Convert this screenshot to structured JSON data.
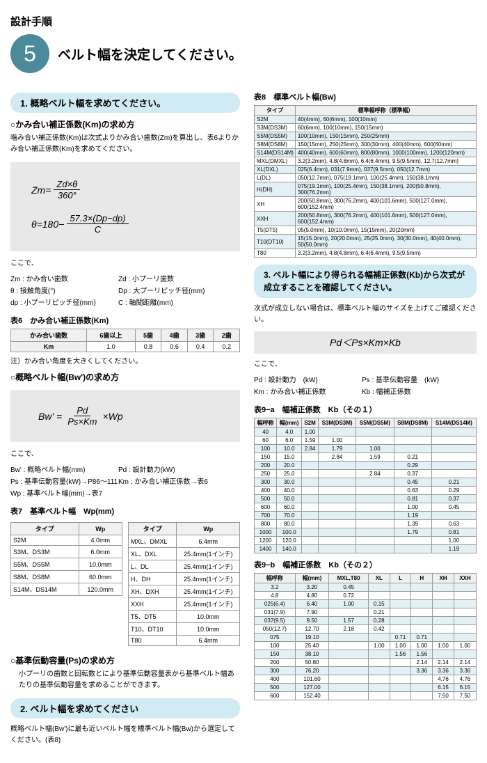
{
  "pageHeading": "設計手順",
  "stepNumber": "5",
  "stepTitle": "ベルト幅を決定してください。",
  "section1": {
    "heading": "1. 概略ベルト幅を求めてください。",
    "sub1": "○かみ合い補正係数(Km)の求め方",
    "desc1": "噛み合い補正係数(Km)は次式よりかみ合い歯数(Zm)を算出し、表6よりかみ合い補正係数(Km)を求めてください。",
    "formula1_lhs": "Zm=",
    "formula1_num": "Zd×θ",
    "formula1_den": "360°",
    "formula2_lhs": "θ=180−",
    "formula2_num": "57.3×(Dp−dp)",
    "formula2_den": "C",
    "defsLabel": "ここで、",
    "defs": [
      {
        "l": "Zm : かみ合い歯数",
        "r": "Zd : 小プーリ歯数"
      },
      {
        "l": "θ : 接触角度(°)",
        "r": "Dp : 大プーリピッチ径(mm)"
      },
      {
        "l": "dp : 小プーリピッチ径(mm)",
        "r": "C : 軸間距離(mm)"
      }
    ],
    "table6Title": "表6　かみ合い補正係数(Km)",
    "table6": {
      "headers": [
        "かみ合い歯数",
        "6歯以上",
        "5歯",
        "4歯",
        "3歯",
        "2歯"
      ],
      "row": [
        "Km",
        "1.0",
        "0.8",
        "0.6",
        "0.4",
        "0.2"
      ]
    },
    "note1": "注）かみ合い角度を大きくしてください。",
    "sub2": "○概略ベルト幅(Bw')の求め方",
    "formula3_lhs": "Bw' =",
    "formula3_num": "Pd",
    "formula3_den": "Ps×Km",
    "formula3_suffix": "×Wp",
    "defs2Label": "ここで、",
    "defs2": [
      {
        "l": "Bw' : 概略ベルト幅(mm)",
        "r": "Pd : 設計動力(kW)"
      },
      {
        "l": "Ps : 基準伝動容量(kW)→P86～111",
        "r": "Km : かみ合い補正係数→表6"
      },
      {
        "l": "Wp : 基準ベルト幅(mm)→表7",
        "r": ""
      }
    ],
    "table7Title": "表7　基準ベルト幅　Wp(mm)",
    "table7a": {
      "headers": [
        "タイプ",
        "Wp"
      ],
      "rows": [
        [
          "S2M",
          "4.0mm"
        ],
        [
          "S3M、DS3M",
          "6.0mm"
        ],
        [
          "S5M、DS5M",
          "10.0mm"
        ],
        [
          "S8M、DS8M",
          "60.0mm"
        ],
        [
          "S14M、DS14M",
          "120.0mm"
        ]
      ]
    },
    "table7b": {
      "headers": [
        "タイプ",
        "Wp"
      ],
      "rows": [
        [
          "MXL、DMXL",
          "6.4mm"
        ],
        [
          "XL、DXL",
          "25.4mm(1インチ)"
        ],
        [
          "L、DL",
          "25.4mm(1インチ)"
        ],
        [
          "H、DH",
          "25.4mm(1インチ)"
        ],
        [
          "XH、DXH",
          "25.4mm(1インチ)"
        ],
        [
          "XXH",
          "25.4mm(1インチ)"
        ],
        [
          "T5、DT5",
          "10.0mm"
        ],
        [
          "T10、DT10",
          "10.0mm"
        ],
        [
          "T80",
          "6.4mm"
        ]
      ]
    },
    "sub3": "○基準伝動容量(Ps)の求め方",
    "desc3": "小プーリの歯数と回転数とにより基準伝動容量表から基準ベルト幅あたりの基準伝動容量を求めることができます。"
  },
  "section2": {
    "heading": "2. ベルト幅を求めてください",
    "desc": "概略ベルト幅(Bw')に最も近いベルト幅を標準ベルト幅(Bw)から選定してください。(表8)"
  },
  "table8": {
    "title": "表8　標準ベルト幅(Bw)",
    "headers": [
      "タイプ",
      "標準幅呼称（標準幅）"
    ],
    "rows": [
      [
        "S2M",
        "40(4mm), 60(6mm), 100(10mm)"
      ],
      [
        "S3M(DS3M)",
        "60(6mm), 100(10mm), 150(15mm)"
      ],
      [
        "S5M(DS5M)",
        "100(10mm), 150(15mm), 250(25mm)"
      ],
      [
        "S8M(DS8M)",
        "150(15mm), 250(25mm), 300(30mm), 400(40mm), 600(60mm)"
      ],
      [
        "S14M(DS14M)",
        "400(40mm), 600(60mm), 800(80mm), 1000(100mm), 1200(120mm)"
      ],
      [
        "MXL(DMXL)",
        "3.2(3.2mm), 4.8(4.8mm), 6.4(6.4mm), 9.5(9.5mm), 12.7(12.7mm)"
      ],
      [
        "XL(DXL)",
        "025(6.4mm), 031(7.9mm), 037(9.5mm), 050(12.7mm)"
      ],
      [
        "L(DL)",
        "050(12.7mm), 075(19.1mm), 100(25.4mm), 150(38.1mm)"
      ],
      [
        "H(DH)",
        "075(19.1mm), 100(25.4mm), 150(38.1mm), 200(50.8mm), 300(76.2mm)"
      ],
      [
        "XH",
        "200(50.8mm), 300(76.2mm), 400(101.6mm), 500(127.0mm), 600(152.4mm)"
      ],
      [
        "XXH",
        "200(50.8mm), 300(76.2mm), 400(101.6mm), 500(127.0mm), 600(152.4mm)"
      ],
      [
        "T5(DT5)",
        "05(5.0mm), 10(10.0mm), 15(15mm), 20(20mm)"
      ],
      [
        "T10(DT10)",
        "15(15.0mm), 20(20.0mm), 25(25.0mm), 30(30.0mm), 40(40.0mm), 50(50.0mm)"
      ],
      [
        "T80",
        "3.2(3.2mm), 4.8(4.8mm), 6.4(6.4mm), 9.5(9.5mm)"
      ]
    ]
  },
  "section3": {
    "heading": "3. ベルト幅により得られる幅補正係数(Kb)から次式が成立することを確認してください。",
    "desc1": "次式が成立しない場合は、標準ベルト幅のサイズを上げてご確認ください。",
    "inequality": "Pd＜Ps×Km×Kb",
    "defsLabel": "ここで、",
    "defs": [
      {
        "l": "Pd : 設計動力　(kW)",
        "r": "Ps : 基準伝動容量　(kW)"
      },
      {
        "l": "Km : かみ合い補正係数",
        "r": "Kb : 幅補正係数"
      }
    ]
  },
  "table9a": {
    "title": "表9−a　幅補正係数　Kb（その１）",
    "headers": [
      "幅呼称",
      "幅(mm)",
      "S2M",
      "S3M(DS3M)",
      "S5M(DS5M)",
      "S8M(DS8M)",
      "S14M(DS14M)"
    ],
    "rows": [
      {
        "stripe": true,
        "cells": [
          "40",
          "4.0",
          "1.00",
          "",
          "",
          "",
          ""
        ]
      },
      {
        "stripe": false,
        "cells": [
          "60",
          "6.0",
          "1.59",
          "1.00",
          "",
          "",
          ""
        ]
      },
      {
        "stripe": true,
        "cells": [
          "100",
          "10.0",
          "2.84",
          "1.79",
          "1.00",
          "",
          ""
        ]
      },
      {
        "stripe": false,
        "cells": [
          "150",
          "15.0",
          "",
          "2.84",
          "1.59",
          "0.21",
          ""
        ]
      },
      {
        "stripe": true,
        "cells": [
          "200",
          "20.0",
          "",
          "",
          "",
          "0.29",
          ""
        ]
      },
      {
        "stripe": false,
        "cells": [
          "250",
          "25.0",
          "",
          "",
          "2.84",
          "0.37",
          ""
        ]
      },
      {
        "stripe": true,
        "cells": [
          "300",
          "30.0",
          "",
          "",
          "",
          "0.45",
          "0.21"
        ]
      },
      {
        "stripe": false,
        "cells": [
          "400",
          "40.0",
          "",
          "",
          "",
          "0.63",
          "0.29"
        ]
      },
      {
        "stripe": true,
        "cells": [
          "500",
          "50.0",
          "",
          "",
          "",
          "0.81",
          "0.37"
        ]
      },
      {
        "stripe": false,
        "cells": [
          "600",
          "60.0",
          "",
          "",
          "",
          "1.00",
          "0.45"
        ]
      },
      {
        "stripe": true,
        "cells": [
          "700",
          "70.0",
          "",
          "",
          "",
          "1.19",
          ""
        ]
      },
      {
        "stripe": false,
        "cells": [
          "800",
          "80.0",
          "",
          "",
          "",
          "1.39",
          "0.63"
        ]
      },
      {
        "stripe": true,
        "cells": [
          "1000",
          "100.0",
          "",
          "",
          "",
          "1.79",
          "0.81"
        ]
      },
      {
        "stripe": false,
        "cells": [
          "1200",
          "120.0",
          "",
          "",
          "",
          "",
          "1.00"
        ]
      },
      {
        "stripe": true,
        "cells": [
          "1400",
          "140.0",
          "",
          "",
          "",
          "",
          "1.19"
        ]
      }
    ]
  },
  "table9b": {
    "title": "表9−b　幅補正係数　Kb（その２）",
    "headers": [
      "幅呼称",
      "幅(mm)",
      "MXL,T80",
      "XL",
      "L",
      "H",
      "XH",
      "XXH"
    ],
    "rows": [
      {
        "stripe": true,
        "cells": [
          "3.2",
          "3.20",
          "0.45",
          "",
          "",
          "",
          "",
          ""
        ]
      },
      {
        "stripe": false,
        "cells": [
          "4.8",
          "4.80",
          "0.72",
          "",
          "",
          "",
          "",
          ""
        ]
      },
      {
        "stripe": true,
        "cells": [
          "025(6.4)",
          "6.40",
          "1.00",
          "0.15",
          "",
          "",
          "",
          ""
        ]
      },
      {
        "stripe": false,
        "cells": [
          "031(7.9)",
          "7.90",
          "",
          "0.21",
          "",
          "",
          "",
          ""
        ]
      },
      {
        "stripe": true,
        "cells": [
          "037(9.5)",
          "9.50",
          "1.57",
          "0.28",
          "",
          "",
          "",
          ""
        ]
      },
      {
        "stripe": false,
        "cells": [
          "050(12.7)",
          "12.70",
          "2.18",
          "0.42",
          "",
          "",
          "",
          ""
        ]
      },
      {
        "stripe": true,
        "cells": [
          "075",
          "19.10",
          "",
          "",
          "0.71",
          "0.71",
          "",
          ""
        ]
      },
      {
        "stripe": false,
        "cells": [
          "100",
          "25.40",
          "",
          "1.00",
          "1.00",
          "1.00",
          "1.00",
          "1.00"
        ]
      },
      {
        "stripe": true,
        "cells": [
          "150",
          "38.10",
          "",
          "",
          "1.56",
          "1.56",
          "",
          ""
        ]
      },
      {
        "stripe": false,
        "cells": [
          "200",
          "50.80",
          "",
          "",
          "",
          "2.14",
          "2.14",
          "2.14"
        ]
      },
      {
        "stripe": true,
        "cells": [
          "300",
          "76.20",
          "",
          "",
          "",
          "3.36",
          "3.36",
          "3.36"
        ]
      },
      {
        "stripe": false,
        "cells": [
          "400",
          "101.60",
          "",
          "",
          "",
          "",
          "4.76",
          "4.76"
        ]
      },
      {
        "stripe": true,
        "cells": [
          "500",
          "127.00",
          "",
          "",
          "",
          "",
          "6.15",
          "6.15"
        ]
      },
      {
        "stripe": false,
        "cells": [
          "600",
          "152.40",
          "",
          "",
          "",
          "",
          "7.50",
          "7.50"
        ]
      }
    ]
  }
}
